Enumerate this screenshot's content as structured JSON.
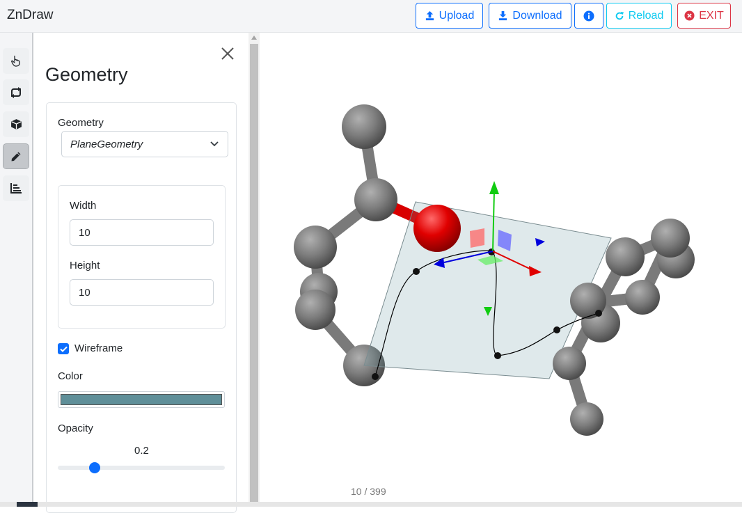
{
  "app": {
    "title": "ZnDraw"
  },
  "navbar": {
    "upload_label": "Upload",
    "download_label": "Download",
    "reload_label": "Reload",
    "exit_label": "EXIT",
    "icons": [
      "upload-icon",
      "download-icon",
      "info-icon",
      "reload-icon",
      "exit-icon"
    ]
  },
  "toolbar": {
    "items": [
      {
        "name": "pointer-tool",
        "icon": "hand-pointer-icon"
      },
      {
        "name": "swap-tool",
        "icon": "swap-arrows-icon"
      },
      {
        "name": "box-tool",
        "icon": "cube-icon"
      },
      {
        "name": "draw-tool",
        "icon": "pencil-icon",
        "active": true
      },
      {
        "name": "chart-tool",
        "icon": "bar-chart-icon"
      }
    ]
  },
  "panel": {
    "title": "Geometry",
    "geometry_label": "Geometry",
    "geometry_value": "PlaneGeometry",
    "width_label": "Width",
    "width_value": "10",
    "height_label": "Height",
    "height_value": "10",
    "wireframe_label": "Wireframe",
    "wireframe_checked": true,
    "color_label": "Color",
    "color_value": "#5f8f99",
    "opacity_label": "Opacity",
    "opacity_value": "0.2",
    "opacity_fraction": 0.2
  },
  "viewport": {
    "frame_counter": "10 / 399",
    "colors": {
      "atom": "#7a7a7a",
      "oxygen": "#e00000",
      "plane": "#dfe7ea",
      "axis_x": "#e00000",
      "axis_y": "#11cc11",
      "axis_z": "#0000dd"
    }
  }
}
